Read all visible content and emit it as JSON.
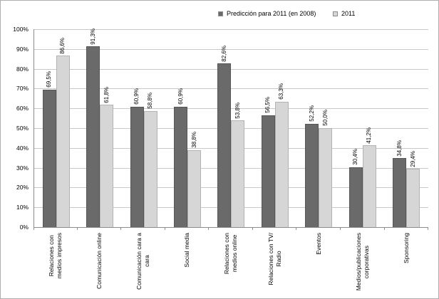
{
  "legend": {
    "position": "top",
    "items": [
      {
        "label": "Predicción para 2011 (en 2008)",
        "color": "#6a6a6a"
      },
      {
        "label": "2011",
        "color": "#d6d6d6"
      }
    ]
  },
  "chart_data": {
    "type": "bar",
    "title": "",
    "xlabel": "",
    "ylabel": "",
    "categories": [
      "Relaciones con medios impresos",
      "Comunicación online",
      "Comunicación cara a cara",
      "Social media",
      "Relaciones con medios online",
      "Relaciones con TV/ Radio",
      "Eventos",
      "Medios/publicaciones corporativas",
      "Sponsoring"
    ],
    "categories_display": [
      "Relaciones con\nmedios impresos",
      "Comunicación online",
      "Comunicación cara a\ncara",
      "Social media",
      "Relaciones con\nmedios online",
      "Relaciones con TV/\nRadio",
      "Eventos",
      "Medios/publicaciones\ncorporativas",
      "Sponsoring"
    ],
    "series": [
      {
        "name": "Predicción para 2011 (en 2008)",
        "color": "#6a6a6a",
        "values": [
          69.5,
          91.3,
          60.9,
          60.9,
          82.6,
          56.5,
          52.2,
          30.4,
          34.8
        ],
        "labels": [
          "69,5%",
          "91,3%",
          "60,9%",
          "60,9%",
          "82,6%",
          "56,5%",
          "52,2%",
          "30,4%",
          "34,8%"
        ]
      },
      {
        "name": "2011",
        "color": "#d6d6d6",
        "values": [
          86.6,
          61.8,
          58.8,
          38.8,
          53.8,
          63.3,
          50.0,
          41.2,
          29.4
        ],
        "labels": [
          "86,6%",
          "61,8%",
          "58,8%",
          "38,8%",
          "53,8%",
          "63,3%",
          "50,0%",
          "41,2%",
          "29,4%"
        ]
      }
    ],
    "y_ticks": [
      "0%",
      "10%",
      "20%",
      "30%",
      "40%",
      "50%",
      "60%",
      "70%",
      "80%",
      "90%",
      "100%"
    ],
    "ylim": [
      0,
      100
    ],
    "grid": true,
    "legend_position": "top"
  },
  "colors": {
    "gridline": "#c9c9c9",
    "axis": "#8c8c8c",
    "frame_border": "#aeaeae"
  }
}
